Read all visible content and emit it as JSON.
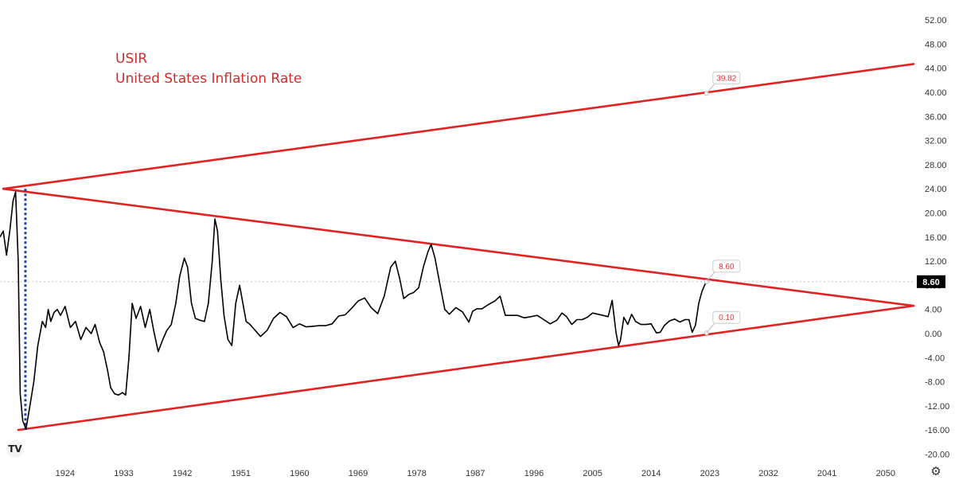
{
  "title": {
    "symbol": "USIR",
    "name": "United States Inflation Rate"
  },
  "logo_text": "TV",
  "icons": {
    "logo": "tradingview-logo-icon",
    "settings": "gear-icon"
  },
  "colors": {
    "trend": "#e02222",
    "series": "#000000",
    "dotted": "#1f3fa8",
    "label_bg": "#000000",
    "grid_dash": "#bbbbbb",
    "axis_text": "#333333"
  },
  "chart_data": {
    "type": "line",
    "title": "USIR United States Inflation Rate",
    "xlabel": "",
    "ylabel": "",
    "xlim": [
      1914.0,
      2054.3
    ],
    "ylim": [
      -21.0,
      54.0
    ],
    "y_ticks": [
      52,
      48,
      44,
      40,
      36,
      32,
      28,
      24,
      20,
      16,
      12,
      8,
      4,
      0,
      -4,
      -8,
      -12,
      -16,
      -20
    ],
    "y_tick_labels": [
      "52.00",
      "48.00",
      "44.00",
      "40.00",
      "36.00",
      "32.00",
      "28.00",
      "24.00",
      "20.00",
      "16.00",
      "12.00",
      "8.00",
      "4.00",
      "0.00",
      "-4.00",
      "-8.00",
      "-12.00",
      "-16.00",
      "-20.00"
    ],
    "x_ticks": [
      1924,
      1933,
      1942,
      1951,
      1960,
      1969,
      1978,
      1987,
      1996,
      2005,
      2014,
      2023,
      2032,
      2041,
      2050
    ],
    "x_tick_labels": [
      "1924",
      "1933",
      "1942",
      "1951",
      "1960",
      "1969",
      "1978",
      "1987",
      "1996",
      "2005",
      "2014",
      "2023",
      "2032",
      "2041",
      "2050"
    ],
    "current_value": 8.6,
    "current_value_label": "8.60",
    "series": [
      {
        "name": "USIR",
        "x": [
          1914.0,
          1914.5,
          1915.0,
          1915.5,
          1916.0,
          1916.4,
          1916.8,
          1917.1,
          1917.5,
          1918.0,
          1918.6,
          1919.2,
          1919.8,
          1920.5,
          1921.0,
          1921.4,
          1921.8,
          1922.3,
          1922.8,
          1923.3,
          1924.0,
          1924.8,
          1925.6,
          1926.4,
          1927.2,
          1928.0,
          1928.6,
          1929.3,
          1929.9,
          1930.5,
          1931.0,
          1931.6,
          1932.2,
          1932.8,
          1933.3,
          1933.8,
          1934.3,
          1934.9,
          1935.6,
          1936.3,
          1937.0,
          1937.6,
          1938.3,
          1939.0,
          1939.6,
          1940.3,
          1941.0,
          1941.6,
          1942.3,
          1942.8,
          1943.4,
          1944.0,
          1944.7,
          1945.4,
          1946.0,
          1946.6,
          1947.0,
          1947.4,
          1947.9,
          1948.4,
          1949.0,
          1949.6,
          1950.2,
          1950.8,
          1951.3,
          1951.8,
          1952.4,
          1953.2,
          1954.0,
          1955.0,
          1956.0,
          1957.0,
          1958.0,
          1959.0,
          1960.0,
          1961.0,
          1962.0,
          1963.0,
          1964.0,
          1965.0,
          1966.0,
          1967.0,
          1968.0,
          1969.0,
          1970.0,
          1971.0,
          1972.0,
          1973.0,
          1974.0,
          1974.7,
          1975.4,
          1976.0,
          1976.8,
          1977.5,
          1978.3,
          1979.0,
          1979.7,
          1980.2,
          1980.8,
          1981.5,
          1982.3,
          1983.0,
          1984.0,
          1985.0,
          1986.0,
          1986.6,
          1987.2,
          1988.0,
          1989.0,
          1990.0,
          1990.8,
          1991.6,
          1992.5,
          1993.5,
          1994.5,
          1995.5,
          1996.5,
          1997.5,
          1998.5,
          1999.5,
          2000.3,
          2001.0,
          2001.8,
          2002.6,
          2003.4,
          2004.2,
          2005.0,
          2005.8,
          2006.6,
          2007.4,
          2008.0,
          2008.6,
          2009.0,
          2009.3,
          2009.8,
          2010.4,
          2011.0,
          2011.6,
          2012.4,
          2013.2,
          2014.0,
          2014.8,
          2015.4,
          2016.0,
          2016.8,
          2017.6,
          2018.4,
          2019.2,
          2019.8,
          2020.3,
          2020.8,
          2021.3,
          2021.8,
          2022.2,
          2022.5
        ],
        "values": [
          16.0,
          17.0,
          13.0,
          17.0,
          22.0,
          23.5,
          12.0,
          -10.0,
          -14.5,
          -15.8,
          -12.0,
          -8.0,
          -2.0,
          2.0,
          1.0,
          4.0,
          2.0,
          3.5,
          4.0,
          3.0,
          4.5,
          1.0,
          2.0,
          -1.0,
          1.0,
          0.0,
          1.5,
          -1.5,
          -3.0,
          -6.0,
          -9.0,
          -10.0,
          -10.2,
          -9.8,
          -10.2,
          -4.0,
          5.0,
          2.5,
          4.5,
          1.0,
          4.0,
          0.5,
          -3.0,
          -1.0,
          0.5,
          1.5,
          5.0,
          9.5,
          12.5,
          11.0,
          5.0,
          2.5,
          2.2,
          2.0,
          5.0,
          12.0,
          19.0,
          17.0,
          9.0,
          3.0,
          -1.0,
          -2.0,
          5.0,
          8.0,
          5.0,
          2.0,
          1.5,
          0.5,
          -0.5,
          0.5,
          2.5,
          3.5,
          2.8,
          1.0,
          1.6,
          1.1,
          1.2,
          1.3,
          1.3,
          1.6,
          2.9,
          3.1,
          4.2,
          5.4,
          5.9,
          4.3,
          3.3,
          6.2,
          11.0,
          12.0,
          9.0,
          5.8,
          6.5,
          6.8,
          7.6,
          11.0,
          13.5,
          14.8,
          12.5,
          8.5,
          4.0,
          3.2,
          4.3,
          3.6,
          1.9,
          3.7,
          4.1,
          4.1,
          4.8,
          5.4,
          6.2,
          3.0,
          3.0,
          3.0,
          2.6,
          2.8,
          3.0,
          2.3,
          1.6,
          2.2,
          3.4,
          2.8,
          1.5,
          2.3,
          2.3,
          2.7,
          3.4,
          3.2,
          3.0,
          2.8,
          5.5,
          0.1,
          -2.0,
          -1.0,
          2.7,
          1.5,
          3.2,
          2.0,
          1.5,
          1.5,
          1.6,
          0.1,
          0.2,
          1.3,
          2.1,
          2.4,
          1.9,
          2.3,
          2.3,
          0.2,
          1.4,
          5.0,
          7.0,
          8.0,
          8.6
        ]
      }
    ],
    "trendlines": [
      {
        "name": "upper",
        "from": [
          1914.5,
          24.0
        ],
        "to": [
          2054.3,
          44.7
        ]
      },
      {
        "name": "middle",
        "from": [
          1914.5,
          24.0
        ],
        "to": [
          2054.3,
          4.6
        ]
      },
      {
        "name": "lower",
        "from": [
          1916.8,
          -16.0
        ],
        "to": [
          2054.3,
          4.6
        ]
      }
    ],
    "vertical_dotted": {
      "x": 1916.8,
      "y_from": 24.0,
      "y_to": -16.0
    },
    "annotations": [
      {
        "text": "39.82",
        "x": 2022.5,
        "y": 39.82
      },
      {
        "text": "8.60",
        "x": 2022.5,
        "y": 8.6
      },
      {
        "text": "0.10",
        "x": 2022.5,
        "y": 0.1
      }
    ]
  }
}
